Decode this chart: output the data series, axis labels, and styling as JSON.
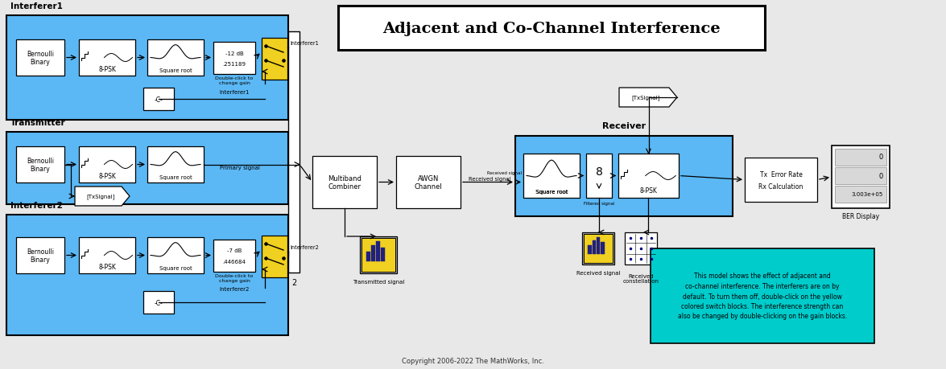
{
  "title": "Adjacent and Co-Channel Interference",
  "bg_color": "#e8e8e8",
  "white": "#ffffff",
  "light_blue": "#5bb8f5",
  "yellow": "#f0d020",
  "dark_outline": "#000000",
  "copyright": "Copyright 2006-2022 The MathWorks, Inc.",
  "interferer1_label": "Interferer1",
  "transmitter_label": "Transmitter",
  "interferer2_label": "Interferer2",
  "receiver_label": "Receiver",
  "annotation_text": "This model shows the effect of adjacent and\nco-channel interference. The interferers are on by\ndefault. To turn them off, double-click on the yellow\ncolored switch blocks. The interference strength can\nalso be changed by double-clicking on the gain blocks."
}
